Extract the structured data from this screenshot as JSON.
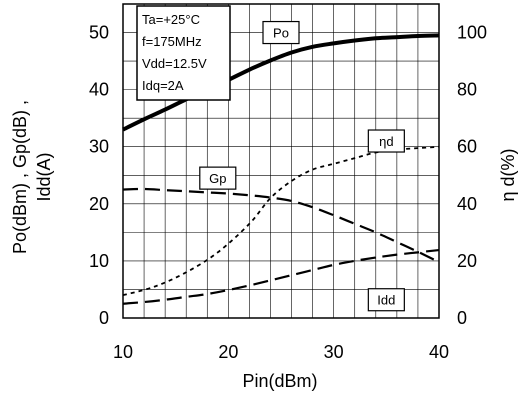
{
  "chart_data": {
    "type": "line",
    "xlabel": "Pin(dBm)",
    "ylabel_lines": [
      "Po(dBm) , Gp(dB) ,",
      "Idd(A)"
    ],
    "y2label": "η d(%)",
    "xlim": [
      10,
      40
    ],
    "ylim": [
      0,
      55
    ],
    "y2lim": [
      0,
      110
    ],
    "x_ticks": [
      10,
      20,
      30,
      40
    ],
    "y_ticks": [
      0,
      10,
      20,
      30,
      40,
      50
    ],
    "y2_ticks": [
      0,
      20,
      40,
      60,
      80,
      100
    ],
    "grid": true,
    "conditions": [
      "Ta=+25°C",
      "f=175MHz",
      "Vdd=12.5V",
      "Idq=2A"
    ],
    "series": [
      {
        "name": "Po",
        "axis": "left",
        "style": "solid",
        "label_at": [
          25,
          50
        ],
        "x": [
          10,
          12,
          14,
          16,
          18,
          20,
          22,
          24,
          26,
          28,
          30,
          32,
          34,
          36,
          38,
          40
        ],
        "y": [
          33,
          34.8,
          36.5,
          38.3,
          40.0,
          41.7,
          43.5,
          45.1,
          46.5,
          47.5,
          48.1,
          48.6,
          49.0,
          49.2,
          49.4,
          49.5
        ]
      },
      {
        "name": "ηd",
        "axis": "right",
        "style": "dotted",
        "label_at": [
          35,
          62
        ],
        "x": [
          10,
          13,
          16,
          19,
          22,
          24,
          26,
          28,
          30,
          32,
          34,
          36,
          38,
          40
        ],
        "y": [
          8,
          11,
          16,
          23,
          33,
          42,
          48,
          52,
          54,
          56,
          58,
          59,
          59.5,
          60
        ]
      },
      {
        "name": "Gp",
        "axis": "left",
        "style": "dashed",
        "label_at": [
          19,
          24.5
        ],
        "x": [
          10,
          12,
          14,
          16,
          18,
          20,
          22,
          24,
          26,
          28,
          30,
          32,
          34,
          36,
          38,
          40
        ],
        "y": [
          22.5,
          22.6,
          22.4,
          22.2,
          22.0,
          21.8,
          21.5,
          21.1,
          20.5,
          19.4,
          18.0,
          16.5,
          15.0,
          13.3,
          11.6,
          9.8
        ]
      },
      {
        "name": "Idd",
        "axis": "left",
        "style": "dashed",
        "label_at": [
          35,
          3.2
        ],
        "x": [
          10,
          12,
          14,
          16,
          18,
          20,
          22,
          24,
          26,
          28,
          30,
          32,
          34,
          36,
          38,
          40
        ],
        "y": [
          2.5,
          2.8,
          3.2,
          3.7,
          4.2,
          4.9,
          5.7,
          6.6,
          7.5,
          8.4,
          9.3,
          10.0,
          10.6,
          11.1,
          11.5,
          11.9
        ]
      }
    ]
  }
}
